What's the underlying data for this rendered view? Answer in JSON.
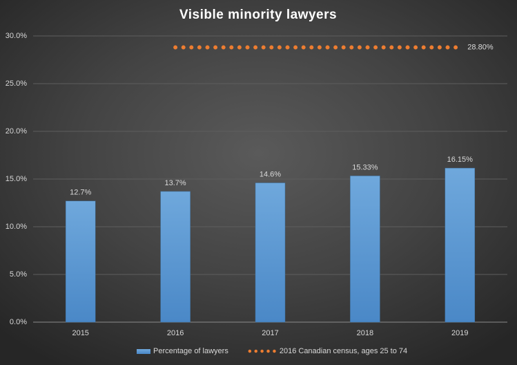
{
  "chart_data": {
    "type": "bar",
    "title": "Visible minority lawyers",
    "categories": [
      "2015",
      "2016",
      "2017",
      "2018",
      "2019"
    ],
    "series": [
      {
        "name": "Percentage of lawyers",
        "type": "bar",
        "color": "#5b9bd5",
        "values": [
          12.7,
          13.7,
          14.6,
          15.33,
          16.15
        ],
        "value_labels": [
          "12.7%",
          "13.7%",
          "14.6%",
          "15.33%",
          "16.15%"
        ]
      },
      {
        "name": "2016 Canadian census, ages 25 to 74",
        "type": "line",
        "color": "#ed7d31",
        "values": [
          null,
          28.8,
          28.8,
          28.8,
          28.8
        ],
        "value_labels": [
          null,
          null,
          null,
          null,
          "28.80%"
        ]
      }
    ],
    "ylim": [
      0,
      30
    ],
    "yticks": [
      {
        "value": 0,
        "label": "0.0%"
      },
      {
        "value": 5,
        "label": "5.0%"
      },
      {
        "value": 10,
        "label": "10.0%"
      },
      {
        "value": 15,
        "label": "15.0%"
      },
      {
        "value": 20,
        "label": "20.0%"
      },
      {
        "value": 25,
        "label": "25.0%"
      },
      {
        "value": 30,
        "label": "30.0%"
      }
    ],
    "grid": true,
    "legend": "bottom"
  }
}
